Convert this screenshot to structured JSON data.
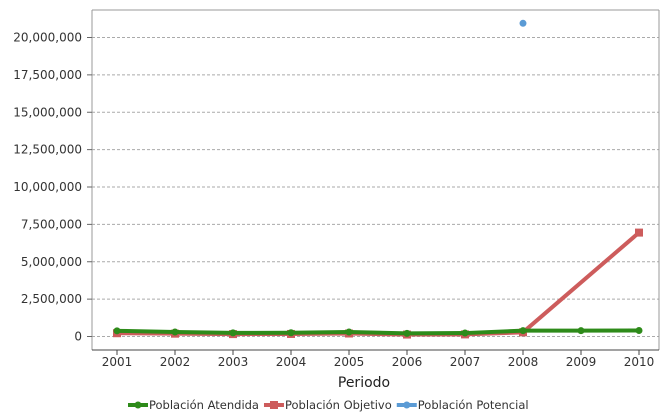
{
  "chart_data": {
    "type": "line",
    "title": "",
    "xlabel": "Periodo",
    "ylabel": "",
    "categories": [
      "2001",
      "2002",
      "2003",
      "2004",
      "2005",
      "2006",
      "2007",
      "2008",
      "2009",
      "2010"
    ],
    "y_ticks": [
      "0",
      "2,500,000",
      "5,000,000",
      "7,500,000",
      "10,000,000",
      "12,500,000",
      "15,000,000",
      "17,500,000",
      "20,000,000"
    ],
    "ylim": [
      0,
      21500000
    ],
    "grid": "horizontal dashed",
    "legend_position": "bottom-center",
    "series": [
      {
        "name": "Población Objetivo",
        "color": "#cd5c5c",
        "marker": "square",
        "values": [
          220000,
          190000,
          160000,
          170000,
          200000,
          130000,
          140000,
          280000,
          null,
          6950000
        ]
      },
      {
        "name": "Población Atendida",
        "color": "#2e8b1a",
        "marker": "circle",
        "values": [
          380000,
          300000,
          240000,
          250000,
          300000,
          210000,
          230000,
          390000,
          390000,
          400000
        ]
      },
      {
        "name": "Población Potencial",
        "color": "#5b9bd5",
        "marker": "circle",
        "values": [
          null,
          null,
          null,
          null,
          null,
          null,
          null,
          20950000,
          null,
          null
        ]
      }
    ],
    "legend_order": [
      "Población Atendida",
      "Población Objetivo",
      "Población Potencial"
    ]
  }
}
